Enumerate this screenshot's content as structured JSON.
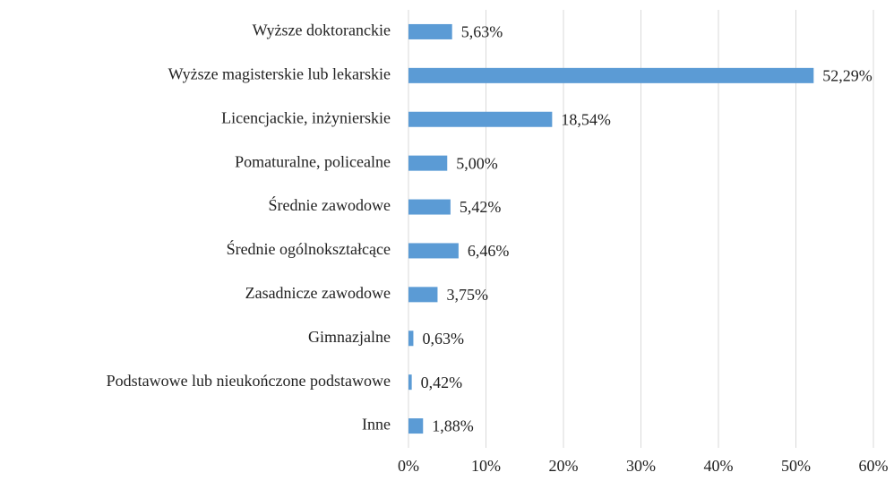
{
  "chart_data": {
    "type": "barh",
    "categories": [
      "Wyższe doktoranckie",
      "Wyższe magisterskie lub lekarskie",
      "Licencjackie, inżynierskie",
      "Pomaturalne, policealne",
      "Średnie zawodowe",
      "Średnie ogólnokształcące",
      "Zasadnicze zawodowe",
      "Gimnazjalne",
      "Podstawowe lub nieukończone podstawowe",
      "Inne"
    ],
    "values": [
      5.63,
      52.29,
      18.54,
      5.0,
      5.42,
      6.46,
      3.75,
      0.63,
      0.42,
      1.88
    ],
    "value_labels": [
      "5,63%",
      "52,29%",
      "18,54%",
      "5,00%",
      "5,42%",
      "6,46%",
      "3,75%",
      "0,63%",
      "0,42%",
      "1,88%"
    ],
    "color": "#5b9bd5",
    "xlim": [
      0,
      60
    ],
    "xticks": [
      {
        "value": 0,
        "label": "0%"
      },
      {
        "value": 10,
        "label": "10%"
      },
      {
        "value": 20,
        "label": "20%"
      },
      {
        "value": 30,
        "label": "30%"
      },
      {
        "value": 40,
        "label": "40%"
      },
      {
        "value": 50,
        "label": "50%"
      },
      {
        "value": 60,
        "label": "60%"
      }
    ],
    "grid": true
  }
}
